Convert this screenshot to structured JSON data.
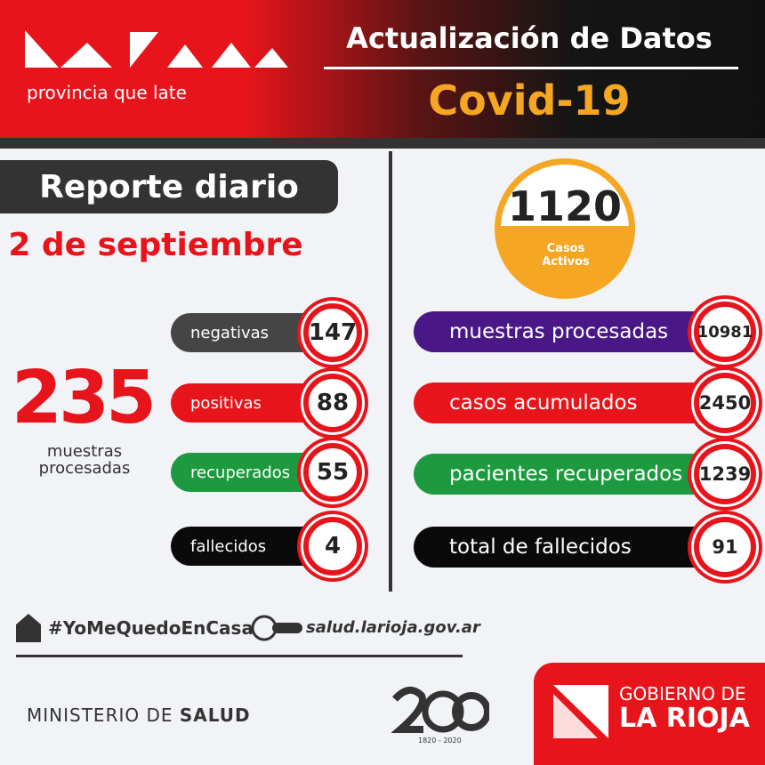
{
  "header": {
    "logo_tagline": "provincia que late",
    "title": "Actualización de Datos",
    "subtitle": "Covid-19"
  },
  "daily": {
    "label": "Reporte diario",
    "date": "2 de septiembre",
    "total": {
      "value": 235,
      "label": "muestras procesadas"
    },
    "items": [
      {
        "label": "negativas",
        "value": 147,
        "color": "#454545"
      },
      {
        "label": "positivas",
        "value": 88,
        "color": "#e8141b"
      },
      {
        "label": "recuperados",
        "value": 55,
        "color": "#1d9a3f"
      },
      {
        "label": "fallecidos",
        "value": 4,
        "color": "#0a0a0a"
      }
    ]
  },
  "cumulative": {
    "active": {
      "value": 1120,
      "label": "Casos Activos"
    },
    "items": [
      {
        "label": "muestras procesadas",
        "value": 10981,
        "color": "#4a1787"
      },
      {
        "label": "casos acumulados",
        "value": 2450,
        "color": "#e8141b"
      },
      {
        "label": "pacientes recuperados",
        "value": 1239,
        "color": "#1d9a3f"
      },
      {
        "label": "total de fallecidos",
        "value": 91,
        "color": "#0a0a0a"
      }
    ]
  },
  "footer": {
    "hashtag": "#YoMeQuedoEnCasa",
    "website": "salud.larioja.gov.ar",
    "ministry_prefix": "MINISTERIO DE",
    "ministry_bold": "SALUD",
    "anniversary_years": "1820 - 2020",
    "government_line1": "GOBIERNO DE",
    "government_line2": "LA RIOJA"
  }
}
